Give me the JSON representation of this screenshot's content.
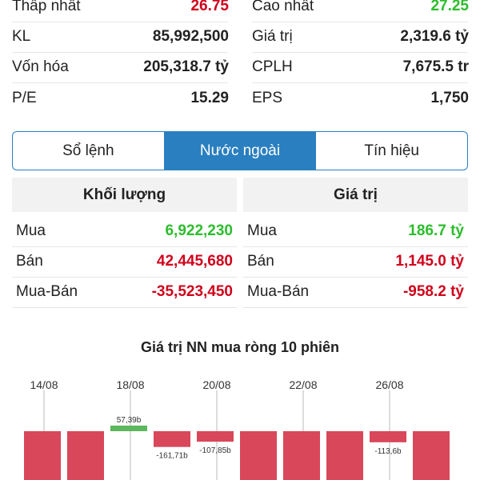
{
  "stats": [
    [
      {
        "label": "Thấp nhất",
        "value": "26.75",
        "tone": "red"
      },
      {
        "label": "Cao nhất",
        "value": "27.25",
        "tone": "green"
      }
    ],
    [
      {
        "label": "KL",
        "value": "85,992,500"
      },
      {
        "label": "Giá trị",
        "value": "2,319.6 tỷ"
      }
    ],
    [
      {
        "label": "Vốn hóa",
        "value": "205,318.7 tỷ"
      },
      {
        "label": "CPLH",
        "value": "7,675.5 tr"
      }
    ],
    [
      {
        "label": "P/E",
        "value": "15.29"
      },
      {
        "label": "EPS",
        "value": "1,750"
      }
    ]
  ],
  "tabs": [
    {
      "label": "Sổ lệnh",
      "active": false
    },
    {
      "label": "Nước ngoài",
      "active": true
    },
    {
      "label": "Tín hiệu",
      "active": false
    }
  ],
  "volume": {
    "header": "Khối lượng",
    "rows": [
      {
        "label": "Mua",
        "value": "6,922,230",
        "tone": "green"
      },
      {
        "label": "Bán",
        "value": "42,445,680",
        "tone": "red"
      },
      {
        "label": "Mua-Bán",
        "value": "-35,523,450",
        "tone": "red"
      }
    ]
  },
  "value": {
    "header": "Giá trị",
    "rows": [
      {
        "label": "Mua",
        "value": "186.7 tỷ",
        "tone": "green"
      },
      {
        "label": "Bán",
        "value": "1,145.0 tỷ",
        "tone": "red"
      },
      {
        "label": "Mua-Bán",
        "value": "-958.2 tỷ",
        "tone": "red"
      }
    ]
  },
  "chart_data": {
    "type": "bar",
    "title": "Giá trị NN mua ròng 10 phiên",
    "tick_labels": [
      "14/08",
      "18/08",
      "20/08",
      "22/08",
      "26/08"
    ],
    "ylim": [
      -600,
      100
    ],
    "bars": [
      {
        "value": -600,
        "label": ""
      },
      {
        "value": -600,
        "label": ""
      },
      {
        "value": 57.39,
        "label": "57,39b"
      },
      {
        "value": -161.71,
        "label": "-161,71b"
      },
      {
        "value": -107.85,
        "label": "-107,85b"
      },
      {
        "value": -600,
        "label": ""
      },
      {
        "value": -600,
        "label": ""
      },
      {
        "value": -600,
        "label": ""
      },
      {
        "value": -113.6,
        "label": "-113,6b"
      },
      {
        "value": -600,
        "label": ""
      }
    ],
    "colors": {
      "positive": "#5cb85c",
      "negative": "#d9475a",
      "grid": "#bbbbbb",
      "tick_text": "#333333",
      "label_text": "#333333"
    }
  }
}
